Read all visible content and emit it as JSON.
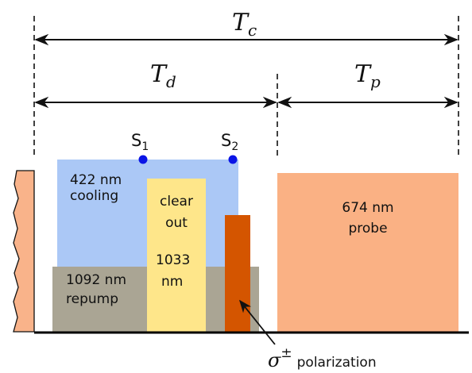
{
  "timing": {
    "total": {
      "symbol": "T",
      "sub": "c"
    },
    "dark": {
      "symbol": "T",
      "sub": "d"
    },
    "probe": {
      "symbol": "T",
      "sub": "p"
    }
  },
  "markers": {
    "s1": {
      "letter": "S",
      "sub": "1"
    },
    "s2": {
      "letter": "S",
      "sub": "2"
    }
  },
  "pulses": {
    "cooling": {
      "line1": "422 nm",
      "line2": "cooling",
      "color": "#abc8f6"
    },
    "repump": {
      "line1": "1092 nm",
      "line2": "repump",
      "color": "#aaa594"
    },
    "clear_out": {
      "line1": "clear",
      "line2": "out",
      "line3": "1033",
      "line4": "nm",
      "color": "#fee68a"
    },
    "polarization_pulse": {
      "color": "#d45500"
    },
    "probe": {
      "line1": "674 nm",
      "line2": "probe",
      "color": "#fab184"
    },
    "previous_cycle": {
      "color": "#f9b38a"
    }
  },
  "annotation": {
    "symbol": "σ",
    "superscript": "±",
    "text": "polarization"
  },
  "colors": {
    "arrow": "#111111",
    "marker_dot": "#0a14e6",
    "baseline": "#000000"
  }
}
